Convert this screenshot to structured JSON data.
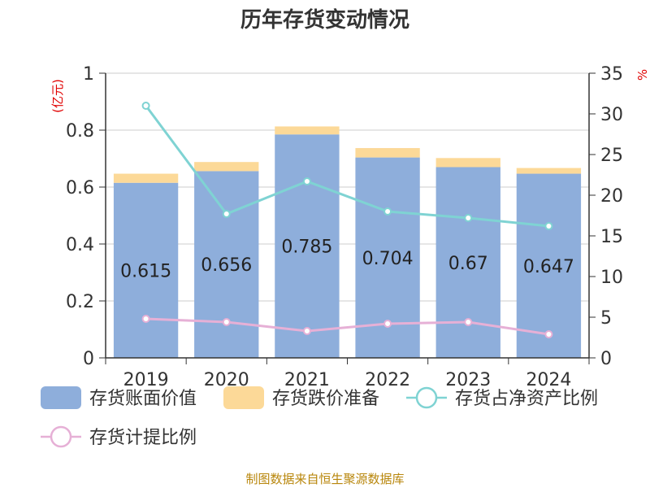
{
  "chart_data": {
    "type": "bar",
    "title": "历年存货变动情况",
    "categories": [
      "2019",
      "2020",
      "2021",
      "2022",
      "2023",
      "2024"
    ],
    "y_left": {
      "unit_label": "(亿元)",
      "ylim": [
        0,
        1
      ],
      "ticks": [
        "0",
        "0.2",
        "0.4",
        "0.6",
        "0.8",
        "1"
      ]
    },
    "y_right": {
      "unit_label": "%",
      "ylim": [
        0,
        35
      ],
      "ticks": [
        "0",
        "5",
        "10",
        "15",
        "20",
        "25",
        "30",
        "35"
      ]
    },
    "series": [
      {
        "name": "存货账面价值",
        "kind": "bar",
        "axis": "left",
        "color": "#8eaedb",
        "stack": "a",
        "values": [
          0.615,
          0.656,
          0.785,
          0.704,
          0.67,
          0.647
        ],
        "labels": [
          "0.615",
          "0.656",
          "0.785",
          "0.704",
          "0.67",
          "0.647"
        ]
      },
      {
        "name": "存货跌价准备",
        "kind": "bar",
        "axis": "left",
        "color": "#fcd998",
        "stack": "a",
        "values": [
          0.032,
          0.032,
          0.028,
          0.033,
          0.032,
          0.02
        ]
      },
      {
        "name": "存货占净资产比例",
        "kind": "line",
        "axis": "right",
        "color": "#7fd3d3",
        "values": [
          31.0,
          17.7,
          21.7,
          18.0,
          17.2,
          16.2
        ]
      },
      {
        "name": "存货计提比例",
        "kind": "line",
        "axis": "right",
        "color": "#e6b0d6",
        "values": [
          4.8,
          4.4,
          3.3,
          4.2,
          4.4,
          2.9
        ]
      }
    ],
    "grid": true,
    "legend_position": "bottom"
  },
  "footer": "制图数据来自恒生聚源数据库"
}
